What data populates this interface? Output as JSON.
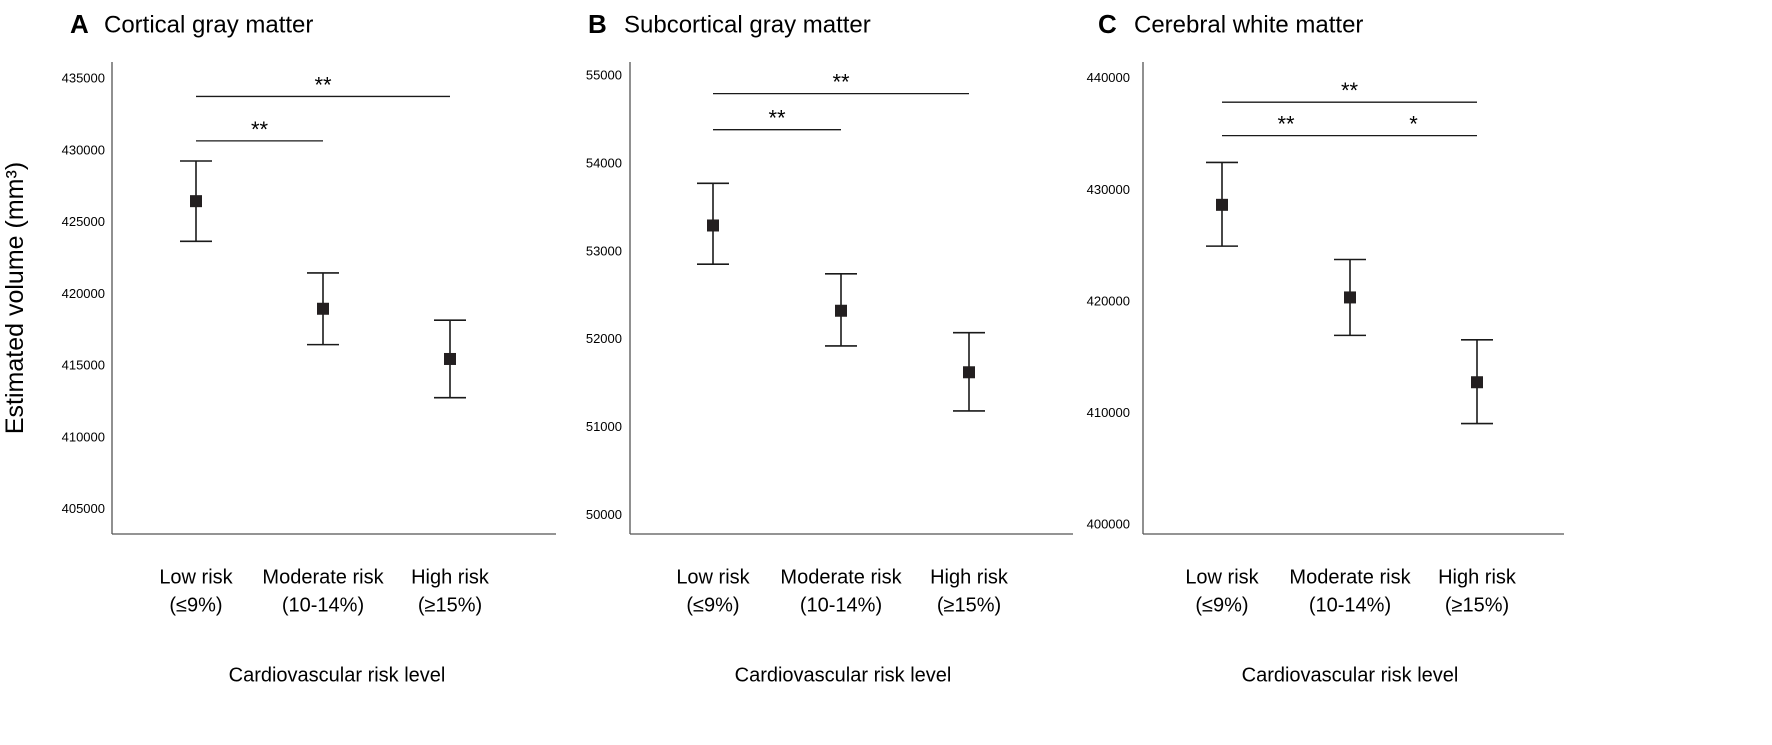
{
  "y_axis_label": "Estimated volume (mm³)",
  "chart_data": [
    {
      "type": "scatter",
      "panel_letter": "A",
      "title": "Cortical gray matter",
      "xlabel": "Cardiovascular risk level",
      "categories": [
        {
          "line1": "Low risk",
          "line2": "(≤9%)"
        },
        {
          "line1": "Moderate risk",
          "line2": "(10-14%)"
        },
        {
          "line1": "High risk",
          "line2": "(≥15%)"
        }
      ],
      "means": [
        426500,
        419000,
        415500
      ],
      "ci_lower": [
        423700,
        416500,
        412800
      ],
      "ci_upper": [
        429300,
        421500,
        418200
      ],
      "ylim": [
        403300,
        436200
      ],
      "yticks": [
        405000,
        410000,
        415000,
        420000,
        425000,
        430000,
        435000
      ],
      "significance": [
        {
          "from": 0,
          "to": 2,
          "label": "**",
          "level": 433800
        },
        {
          "from": 0,
          "to": 1,
          "label": "**",
          "level": 430700
        }
      ]
    },
    {
      "type": "scatter",
      "panel_letter": "B",
      "title": "Subcortical gray matter",
      "xlabel": "Cardiovascular risk level",
      "categories": [
        {
          "line1": "Low risk",
          "line2": "(≤9%)"
        },
        {
          "line1": "Moderate risk",
          "line2": "(10-14%)"
        },
        {
          "line1": "High risk",
          "line2": "(≥15%)"
        }
      ],
      "means": [
        53300,
        52330,
        51630
      ],
      "ci_lower": [
        52860,
        51930,
        51190
      ],
      "ci_upper": [
        53780,
        52750,
        52080
      ],
      "ylim": [
        49790,
        55160
      ],
      "yticks": [
        50000,
        51000,
        52000,
        53000,
        54000,
        55000
      ],
      "significance": [
        {
          "from": 0,
          "to": 2,
          "label": "**",
          "level": 54800
        },
        {
          "from": 0,
          "to": 1,
          "label": "**",
          "level": 54390
        }
      ]
    },
    {
      "type": "scatter",
      "panel_letter": "C",
      "title": "Cerebral white matter",
      "xlabel": "Cardiovascular risk level",
      "categories": [
        {
          "line1": "Low risk",
          "line2": "(≤9%)"
        },
        {
          "line1": "Moderate risk",
          "line2": "(10-14%)"
        },
        {
          "line1": "High risk",
          "line2": "(≥15%)"
        }
      ],
      "means": [
        428700,
        420400,
        412800
      ],
      "ci_lower": [
        425000,
        417000,
        409100
      ],
      "ci_upper": [
        432500,
        423800,
        416600
      ],
      "ylim": [
        399200,
        441500
      ],
      "yticks": [
        400000,
        410000,
        420000,
        430000,
        440000
      ],
      "significance": [
        {
          "from": 0,
          "to": 2,
          "label": "**",
          "level": 437900
        },
        {
          "from": 0,
          "to": 1,
          "label": "**",
          "level": 434900
        },
        {
          "from": 1,
          "to": 2,
          "label": "*",
          "level": 434900
        }
      ]
    }
  ]
}
